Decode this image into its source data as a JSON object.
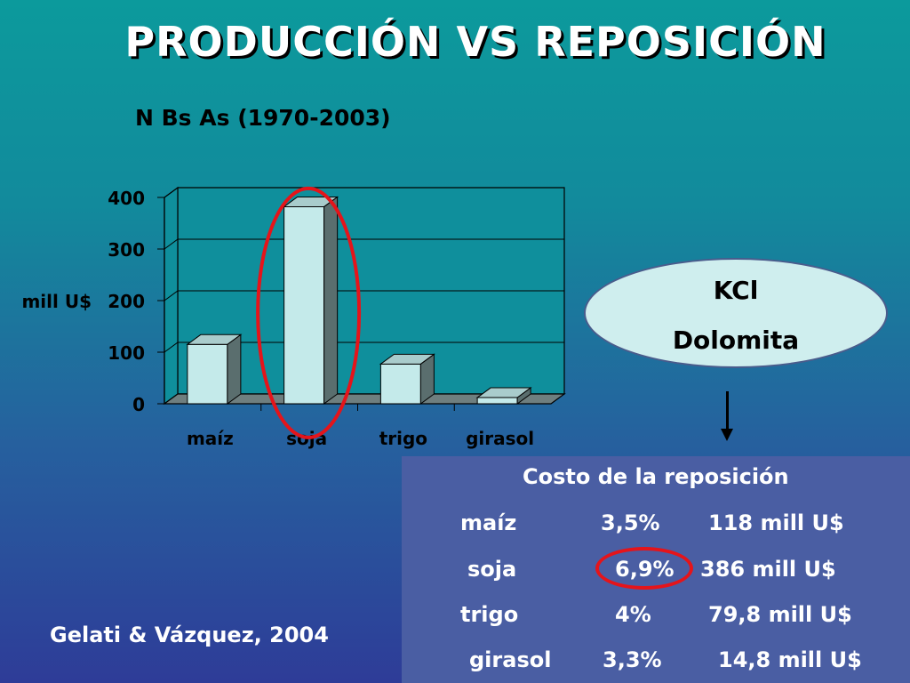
{
  "title": "PRODUCCIÓN VS REPOSICIÓN",
  "subtitle": "N Bs As (1970-2003)",
  "chart_data": {
    "type": "bar",
    "categories": [
      "maíz",
      "soja",
      "trigo",
      "girasol"
    ],
    "values": [
      115,
      382,
      77,
      12
    ],
    "ylabel": "mill U$",
    "yticks": [
      0,
      100,
      200,
      300,
      400
    ],
    "ylim": [
      0,
      400
    ],
    "grid": true,
    "highlight_category": "soja",
    "colors": {
      "bar_front": "#c4eaea",
      "bar_side": "#5a6e6e",
      "bar_top": "#a9cccc",
      "plot_bg": "#0f8f9c",
      "highlight": "#e5141a"
    }
  },
  "nutrients": [
    "KCl",
    "Dolomita"
  ],
  "cost_table": {
    "title": "Costo de la reposición",
    "rows": [
      {
        "crop": "maíz",
        "pct": "3,5%",
        "value": "118 mill U$"
      },
      {
        "crop": "soja",
        "pct": "6,9%",
        "value": "386 mill U$"
      },
      {
        "crop": "trigo",
        "pct": "4%",
        "value": "79,8 mill U$"
      },
      {
        "crop": "girasol",
        "pct": "3,3%",
        "value": "14,8 mill U$"
      }
    ]
  },
  "citation": "Gelati & Vázquez, 2004"
}
